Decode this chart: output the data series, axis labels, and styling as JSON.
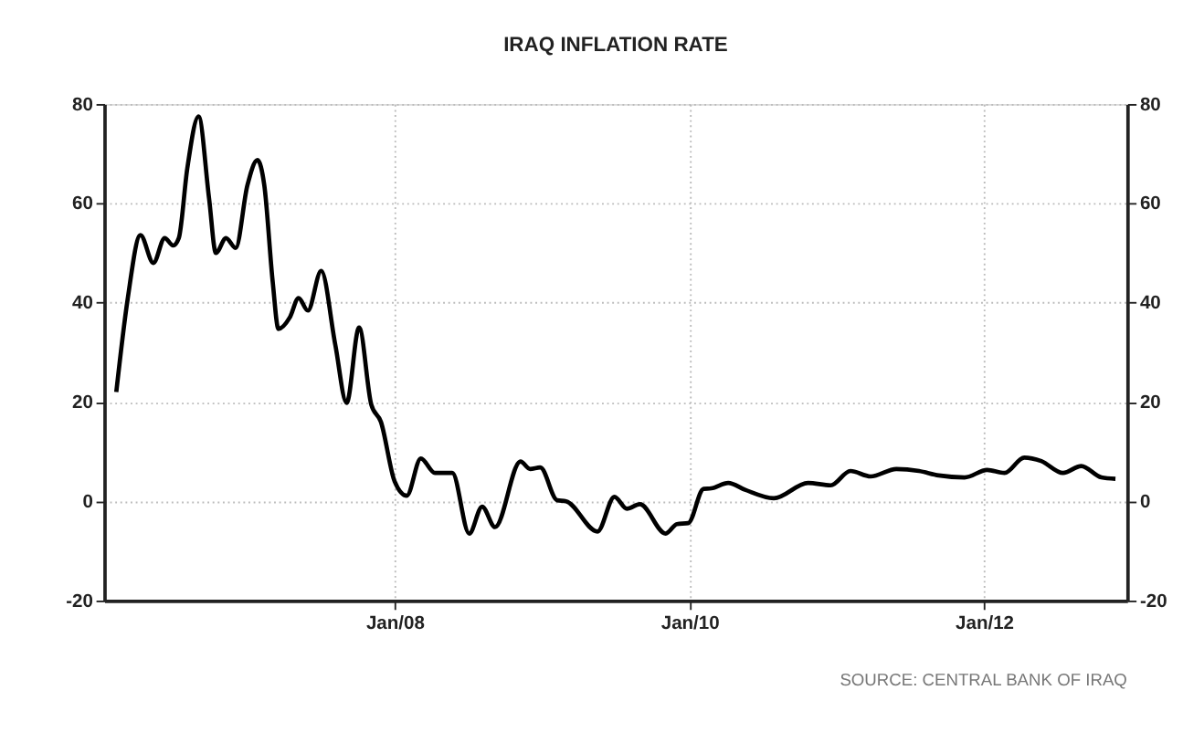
{
  "chart_data": {
    "type": "line",
    "title": "IRAQ INFLATION RATE",
    "x": [
      "2006-02-10",
      "2006-03-10",
      "2006-04-11",
      "2006-05-13",
      "2006-06-10",
      "2006-07-01",
      "2006-07-15",
      "2006-08-05",
      "2006-09-02",
      "2006-09-28",
      "2006-10-15",
      "2006-11-09",
      "2006-12-03",
      "2007-01-01",
      "2007-01-26",
      "2007-02-12",
      "2007-03-05",
      "2007-03-19",
      "2007-04-16",
      "2007-05-08",
      "2007-05-31",
      "2007-07-03",
      "2007-08-07",
      "2007-09-04",
      "2007-10-05",
      "2007-11-04",
      "2007-11-28",
      "2008-01-01",
      "2008-01-31",
      "2008-03-06",
      "2008-04-10",
      "2008-05-23",
      "2008-07-04",
      "2008-08-05",
      "2008-09-06",
      "2008-11-08",
      "2008-12-02",
      "2008-12-27",
      "2009-02-07",
      "2009-03-01",
      "2009-05-18",
      "2009-06-29",
      "2009-07-30",
      "2009-08-31",
      "2009-11-03",
      "2009-12-01",
      "2009-12-29",
      "2010-02-05",
      "2010-02-24",
      "2010-04-07",
      "2010-05-19",
      "2010-07-29",
      "2010-10-22",
      "2010-12-17",
      "2011-02-04",
      "2011-03-26",
      "2011-05-29",
      "2011-07-24",
      "2011-09-11",
      "2011-11-14",
      "2012-01-09",
      "2012-02-21",
      "2012-04-10",
      "2012-05-22",
      "2012-07-15",
      "2012-08-29",
      "2012-10-18",
      "2012-11-22"
    ],
    "series": [
      {
        "color": "#000000",
        "values": [
          22,
          40.6,
          53.6,
          48,
          53,
          51.5,
          53,
          67,
          77.5,
          61,
          50,
          53,
          51,
          63.6,
          68.7,
          63.6,
          44,
          34.7,
          37,
          40.9,
          38.4,
          46.4,
          31.5,
          19.8,
          35,
          19.5,
          16,
          4,
          1.1,
          8.6,
          5.7,
          5.7,
          -6.5,
          -1.1,
          -5.2,
          8,
          6.5,
          6.8,
          0.2,
          0,
          -6.1,
          0.9,
          -1.5,
          -0.6,
          -6.5,
          -4.6,
          -4.4,
          2.5,
          2.6,
          3.7,
          2.3,
          0.6,
          3.7,
          3.2,
          6.1,
          5,
          6.5,
          6.1,
          5.2,
          4.8,
          6.3,
          5.7,
          8.8,
          8.1,
          5.7,
          7.1,
          4.8,
          4.5
        ]
      }
    ],
    "xlim": [
      "2006-01-11",
      "2012-12-21"
    ],
    "xticks": [
      {
        "value": "2008-01-01",
        "label": "Jan/08"
      },
      {
        "value": "2010-01-01",
        "label": "Jan/10"
      },
      {
        "value": "2012-01-01",
        "label": "Jan/12"
      }
    ],
    "ylim": [
      -20,
      80
    ],
    "yticks": [
      -20,
      0,
      20,
      40,
      60,
      80
    ],
    "y2lim": [
      -20,
      80
    ],
    "y2ticks": [
      -20,
      0,
      20,
      40,
      60,
      80
    ],
    "grid": true,
    "marker": "none",
    "line_style": "solid",
    "annotations": [
      "SOURCE: CENTRAL BANK OF IRAQ"
    ]
  }
}
